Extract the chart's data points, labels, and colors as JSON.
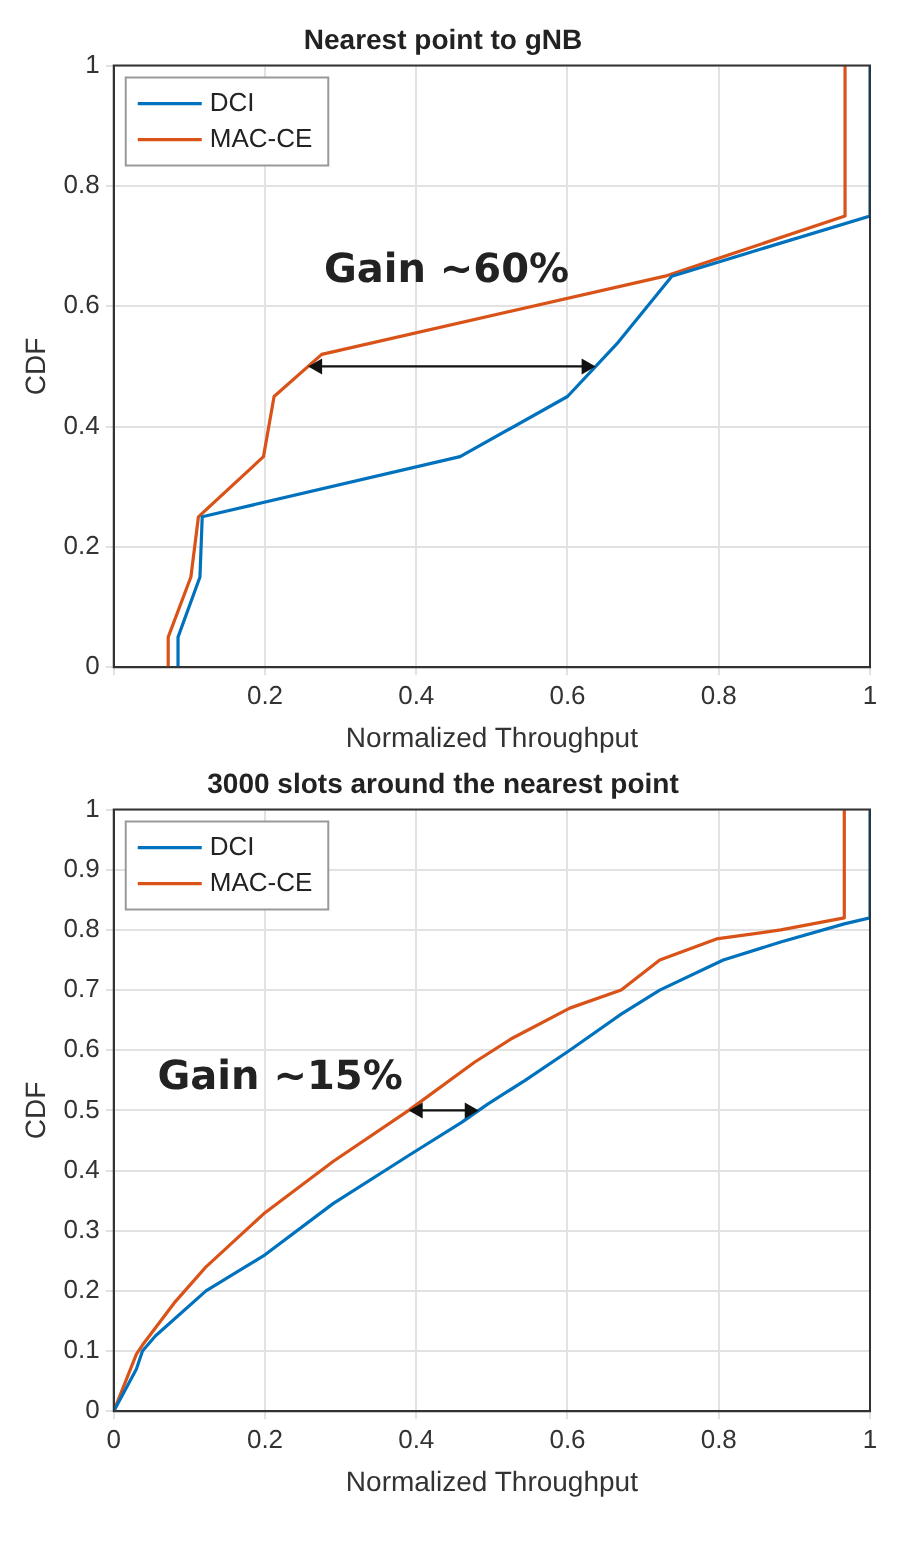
{
  "chart_data": [
    {
      "type": "line",
      "title": "Nearest point to gNB",
      "xlabel": "Normalized Throughput",
      "ylabel": "CDF",
      "xlim": [
        0,
        1
      ],
      "xticks": [
        {
          "value": 0,
          "label": null
        },
        0.2,
        0.4,
        0.6,
        0.8,
        1
      ],
      "ylim": [
        0,
        1
      ],
      "yticks": [
        0,
        0.2,
        0.4,
        0.6,
        0.8,
        1
      ],
      "grid": true,
      "legend": "top left",
      "marker": "none",
      "line_style": "solid",
      "annotations": [
        "Gain ~60%"
      ],
      "series": [
        {
          "name": "DCI",
          "color": "#0072bd",
          "x": [
            0.085,
            0.085,
            0.114,
            0.117,
            0.458,
            0.6,
            0.667,
            0.738,
            1.0,
            1.0
          ],
          "values": [
            0,
            0.05,
            0.15,
            0.25,
            0.35,
            0.45,
            0.54,
            0.65,
            0.75,
            1
          ]
        },
        {
          "name": "MAC-CE",
          "color": "#d95319",
          "x": [
            0.072,
            0.072,
            0.102,
            0.112,
            0.198,
            0.212,
            0.275,
            0.729,
            0.967,
            0.967
          ],
          "values": [
            0,
            0.05,
            0.15,
            0.25,
            0.35,
            0.45,
            0.52,
            0.65,
            0.75,
            1
          ]
        }
      ]
    },
    {
      "type": "line",
      "title": "3000 slots around the nearest point",
      "xlabel": "Normalized Throughput",
      "ylabel": "CDF",
      "xlim": [
        0,
        1
      ],
      "xticks": [
        0,
        0.2,
        0.4,
        0.6,
        0.8,
        1
      ],
      "ylim": [
        0,
        1
      ],
      "yticks": [
        0,
        0.1,
        0.2,
        0.3,
        0.4,
        0.5,
        0.6,
        0.7,
        0.8,
        0.9,
        1
      ],
      "grid": true,
      "legend": "top left",
      "marker": "none",
      "line_style": "solid",
      "annotations": [
        "Gain ~15%"
      ],
      "series": [
        {
          "name": "DCI",
          "color": "#0072bd",
          "x": [
            0,
            0.03,
            0.038,
            0.055,
            0.122,
            0.2,
            0.29,
            0.39,
            0.46,
            0.494,
            0.544,
            0.603,
            0.671,
            0.722,
            0.806,
            0.882,
            0.966,
            1.0,
            1.0
          ],
          "values": [
            0,
            0.07,
            0.1,
            0.125,
            0.2,
            0.26,
            0.345,
            0.425,
            0.48,
            0.51,
            0.55,
            0.6,
            0.66,
            0.7,
            0.75,
            0.78,
            0.81,
            0.82,
            1
          ]
        },
        {
          "name": "MAC-CE",
          "color": "#d95319",
          "x": [
            0,
            0.03,
            0.038,
            0.08,
            0.122,
            0.2,
            0.29,
            0.39,
            0.477,
            0.527,
            0.603,
            0.671,
            0.722,
            0.797,
            0.882,
            0.966,
            0.966
          ],
          "values": [
            0,
            0.095,
            0.11,
            0.18,
            0.24,
            0.33,
            0.415,
            0.5,
            0.58,
            0.62,
            0.67,
            0.7,
            0.75,
            0.785,
            0.8,
            0.82,
            1
          ]
        }
      ]
    }
  ]
}
